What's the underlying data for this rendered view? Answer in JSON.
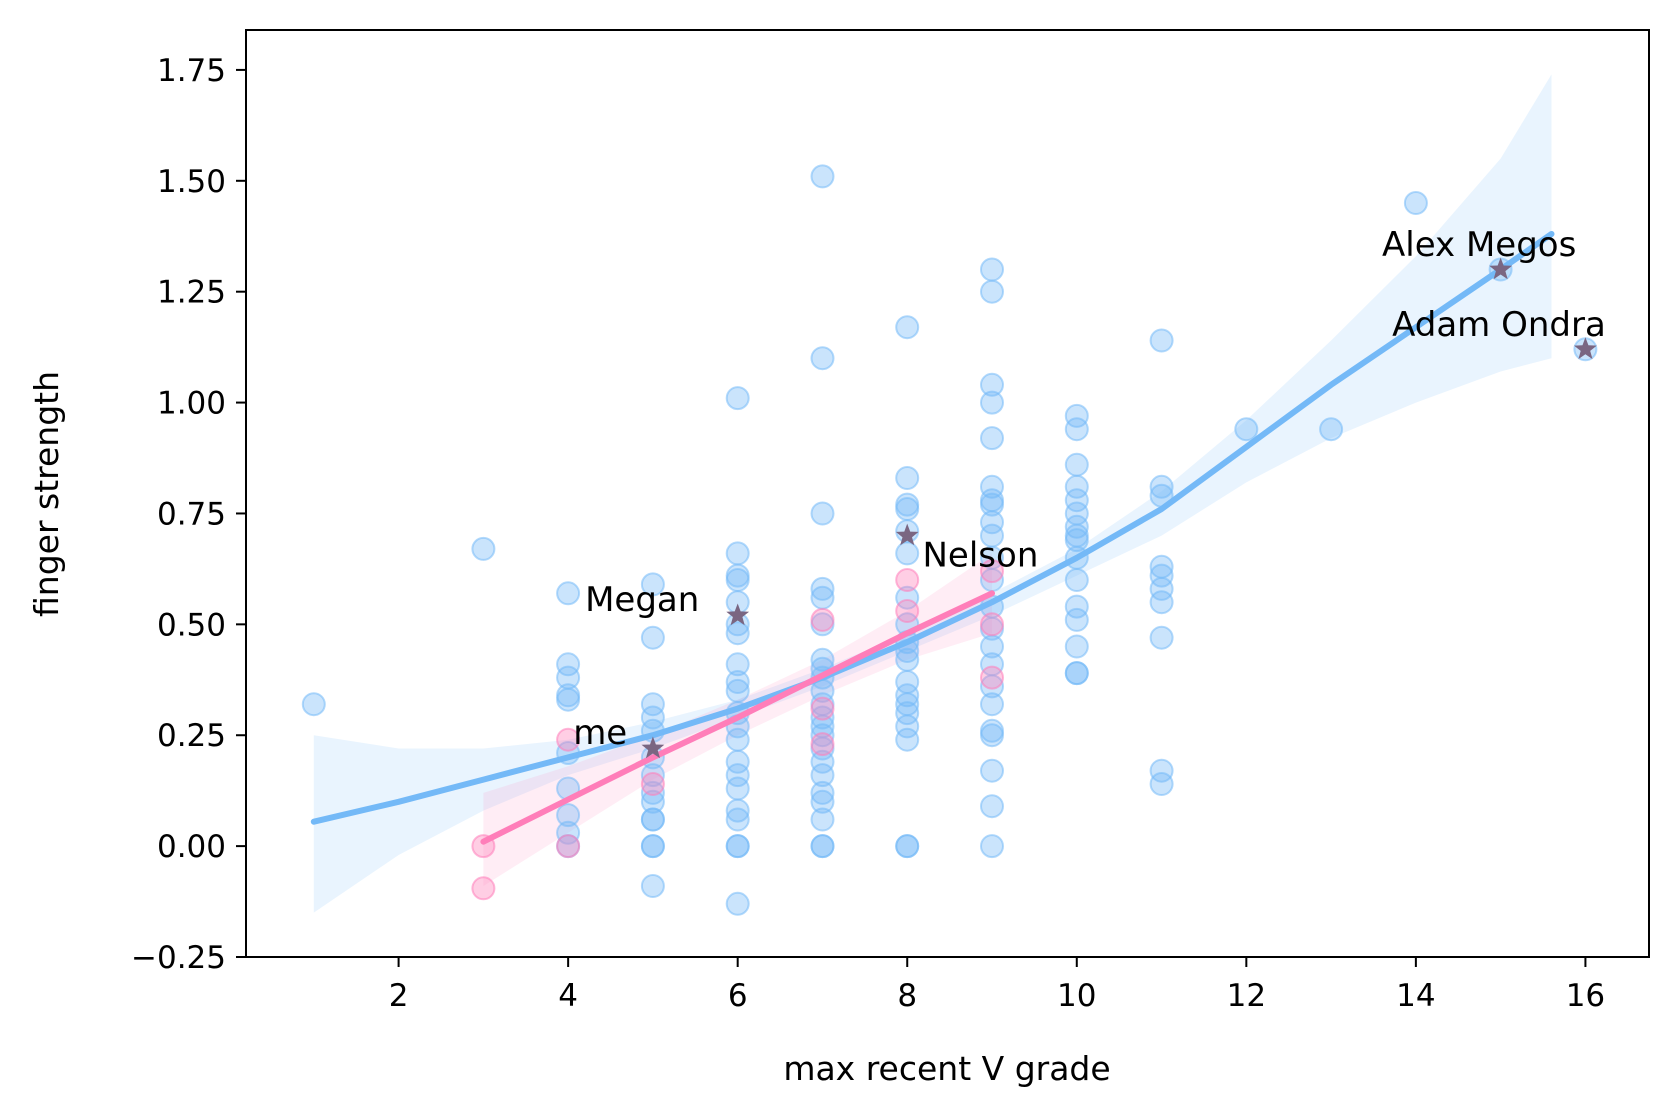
{
  "chart_data": {
    "type": "scatter",
    "title": "",
    "xlabel": "max recent V grade",
    "ylabel": "finger strength",
    "xlim": [
      0.2,
      16.75
    ],
    "ylim": [
      -0.25,
      1.84
    ],
    "xticks": [
      2,
      4,
      6,
      8,
      10,
      12,
      14,
      16
    ],
    "yticks": [
      -0.25,
      0.0,
      0.25,
      0.5,
      0.75,
      1.0,
      1.25,
      1.5,
      1.75
    ],
    "ytick_labels": [
      "−0.25",
      "0.00",
      "0.25",
      "0.50",
      "0.75",
      "1.00",
      "1.25",
      "1.50",
      "1.75"
    ],
    "grid": false,
    "legend": "none",
    "colors": {
      "blue": "#74b9f7",
      "pink": "#ff7eb9",
      "star": "#7a6682"
    },
    "series": [
      {
        "color": "blue",
        "points": [
          [
            1,
            0.32
          ],
          [
            3,
            0.67
          ],
          [
            4,
            0.57
          ],
          [
            4,
            0.41
          ],
          [
            4,
            0.38
          ],
          [
            4,
            0.34
          ],
          [
            4,
            0.33
          ],
          [
            4,
            0.21
          ],
          [
            4,
            0.13
          ],
          [
            4,
            0.07
          ],
          [
            4,
            0.03
          ],
          [
            4,
            0.0
          ],
          [
            5,
            0.59
          ],
          [
            5,
            0.47
          ],
          [
            5,
            0.32
          ],
          [
            5,
            0.29
          ],
          [
            5,
            0.26
          ],
          [
            5,
            0.2
          ],
          [
            5,
            0.16
          ],
          [
            5,
            0.12
          ],
          [
            5,
            0.1
          ],
          [
            5,
            0.06
          ],
          [
            5,
            0.06
          ],
          [
            5,
            0.0
          ],
          [
            5,
            0.0
          ],
          [
            5,
            -0.09
          ],
          [
            6,
            1.01
          ],
          [
            6,
            0.66
          ],
          [
            6,
            0.61
          ],
          [
            6,
            0.6
          ],
          [
            6,
            0.55
          ],
          [
            6,
            0.5
          ],
          [
            6,
            0.48
          ],
          [
            6,
            0.41
          ],
          [
            6,
            0.37
          ],
          [
            6,
            0.35
          ],
          [
            6,
            0.3
          ],
          [
            6,
            0.27
          ],
          [
            6,
            0.24
          ],
          [
            6,
            0.19
          ],
          [
            6,
            0.16
          ],
          [
            6,
            0.13
          ],
          [
            6,
            0.08
          ],
          [
            6,
            0.06
          ],
          [
            6,
            0.0
          ],
          [
            6,
            0.0
          ],
          [
            6,
            -0.13
          ],
          [
            7,
            1.51
          ],
          [
            7,
            1.1
          ],
          [
            7,
            0.75
          ],
          [
            7,
            0.58
          ],
          [
            7,
            0.56
          ],
          [
            7,
            0.5
          ],
          [
            7,
            0.42
          ],
          [
            7,
            0.4
          ],
          [
            7,
            0.38
          ],
          [
            7,
            0.35
          ],
          [
            7,
            0.32
          ],
          [
            7,
            0.29
          ],
          [
            7,
            0.27
          ],
          [
            7,
            0.25
          ],
          [
            7,
            0.22
          ],
          [
            7,
            0.19
          ],
          [
            7,
            0.16
          ],
          [
            7,
            0.12
          ],
          [
            7,
            0.1
          ],
          [
            7,
            0.06
          ],
          [
            7,
            0.0
          ],
          [
            7,
            0.0
          ],
          [
            8,
            1.17
          ],
          [
            8,
            0.83
          ],
          [
            8,
            0.77
          ],
          [
            8,
            0.76
          ],
          [
            8,
            0.71
          ],
          [
            8,
            0.66
          ],
          [
            8,
            0.56
          ],
          [
            8,
            0.5
          ],
          [
            8,
            0.46
          ],
          [
            8,
            0.44
          ],
          [
            8,
            0.42
          ],
          [
            8,
            0.37
          ],
          [
            8,
            0.34
          ],
          [
            8,
            0.32
          ],
          [
            8,
            0.3
          ],
          [
            8,
            0.27
          ],
          [
            8,
            0.24
          ],
          [
            8,
            0.0
          ],
          [
            8,
            0.0
          ],
          [
            9,
            1.3
          ],
          [
            9,
            1.25
          ],
          [
            9,
            1.04
          ],
          [
            9,
            1.0
          ],
          [
            9,
            0.92
          ],
          [
            9,
            0.81
          ],
          [
            9,
            0.78
          ],
          [
            9,
            0.77
          ],
          [
            9,
            0.73
          ],
          [
            9,
            0.7
          ],
          [
            9,
            0.65
          ],
          [
            9,
            0.6
          ],
          [
            9,
            0.54
          ],
          [
            9,
            0.49
          ],
          [
            9,
            0.45
          ],
          [
            9,
            0.41
          ],
          [
            9,
            0.36
          ],
          [
            9,
            0.32
          ],
          [
            9,
            0.26
          ],
          [
            9,
            0.25
          ],
          [
            9,
            0.17
          ],
          [
            9,
            0.09
          ],
          [
            9,
            0.0
          ],
          [
            10,
            0.97
          ],
          [
            10,
            0.94
          ],
          [
            10,
            0.86
          ],
          [
            10,
            0.81
          ],
          [
            10,
            0.78
          ],
          [
            10,
            0.75
          ],
          [
            10,
            0.72
          ],
          [
            10,
            0.7
          ],
          [
            10,
            0.69
          ],
          [
            10,
            0.65
          ],
          [
            10,
            0.6
          ],
          [
            10,
            0.54
          ],
          [
            10,
            0.51
          ],
          [
            10,
            0.45
          ],
          [
            10,
            0.39
          ],
          [
            10,
            0.39
          ],
          [
            11,
            1.14
          ],
          [
            11,
            0.81
          ],
          [
            11,
            0.79
          ],
          [
            11,
            0.63
          ],
          [
            11,
            0.61
          ],
          [
            11,
            0.58
          ],
          [
            11,
            0.55
          ],
          [
            11,
            0.47
          ],
          [
            11,
            0.17
          ],
          [
            11,
            0.14
          ],
          [
            12,
            0.94
          ],
          [
            13,
            0.94
          ],
          [
            14,
            1.45
          ],
          [
            15,
            1.3
          ],
          [
            16,
            1.12
          ]
        ],
        "fit": {
          "x": [
            1,
            2,
            3,
            4,
            5,
            6,
            7,
            8,
            9,
            10,
            11,
            12,
            13,
            14,
            15,
            15.6
          ],
          "y": [
            0.055,
            0.1,
            0.15,
            0.2,
            0.25,
            0.31,
            0.38,
            0.46,
            0.55,
            0.65,
            0.76,
            0.9,
            1.04,
            1.17,
            1.3,
            1.38
          ],
          "ci_upper": [
            0.25,
            0.22,
            0.22,
            0.24,
            0.28,
            0.33,
            0.4,
            0.48,
            0.57,
            0.67,
            0.8,
            0.96,
            1.14,
            1.33,
            1.55,
            1.74
          ],
          "ci_lower": [
            -0.15,
            -0.02,
            0.08,
            0.16,
            0.22,
            0.29,
            0.36,
            0.44,
            0.52,
            0.61,
            0.7,
            0.82,
            0.92,
            1.0,
            1.07,
            1.1
          ]
        }
      },
      {
        "color": "pink",
        "points": [
          [
            3,
            0.0
          ],
          [
            3,
            -0.095
          ],
          [
            4,
            0.24
          ],
          [
            4,
            0.0
          ],
          [
            5,
            0.14
          ],
          [
            7,
            0.51
          ],
          [
            7,
            0.31
          ],
          [
            7,
            0.23
          ],
          [
            8,
            0.6
          ],
          [
            8,
            0.53
          ],
          [
            9,
            0.62
          ],
          [
            9,
            0.5
          ],
          [
            9,
            0.38
          ]
        ],
        "fit": {
          "x": [
            3,
            4,
            5,
            6,
            7,
            8,
            9
          ],
          "y": [
            0.01,
            0.105,
            0.2,
            0.29,
            0.385,
            0.48,
            0.57
          ],
          "ci_upper": [
            0.12,
            0.18,
            0.25,
            0.33,
            0.42,
            0.53,
            0.66
          ],
          "ci_lower": [
            -0.09,
            0.03,
            0.15,
            0.25,
            0.34,
            0.42,
            0.48
          ]
        }
      }
    ],
    "annotations": [
      {
        "text": "me",
        "x": 5,
        "y": 0.22,
        "label_x": 4.06,
        "label_y": 0.23,
        "anchor": "start"
      },
      {
        "text": "Megan",
        "x": 6,
        "y": 0.52,
        "label_x": 4.2,
        "label_y": 0.53,
        "anchor": "start"
      },
      {
        "text": "Nelson",
        "x": 8,
        "y": 0.7,
        "label_x": 8.18,
        "label_y": 0.63,
        "anchor": "start"
      },
      {
        "text": "Alex Megos",
        "x": 15,
        "y": 1.3,
        "label_x": 13.6,
        "label_y": 1.33,
        "anchor": "start"
      },
      {
        "text": "Adam Ondra",
        "x": 16,
        "y": 1.12,
        "label_x": 13.72,
        "label_y": 1.15,
        "anchor": "start"
      }
    ]
  }
}
